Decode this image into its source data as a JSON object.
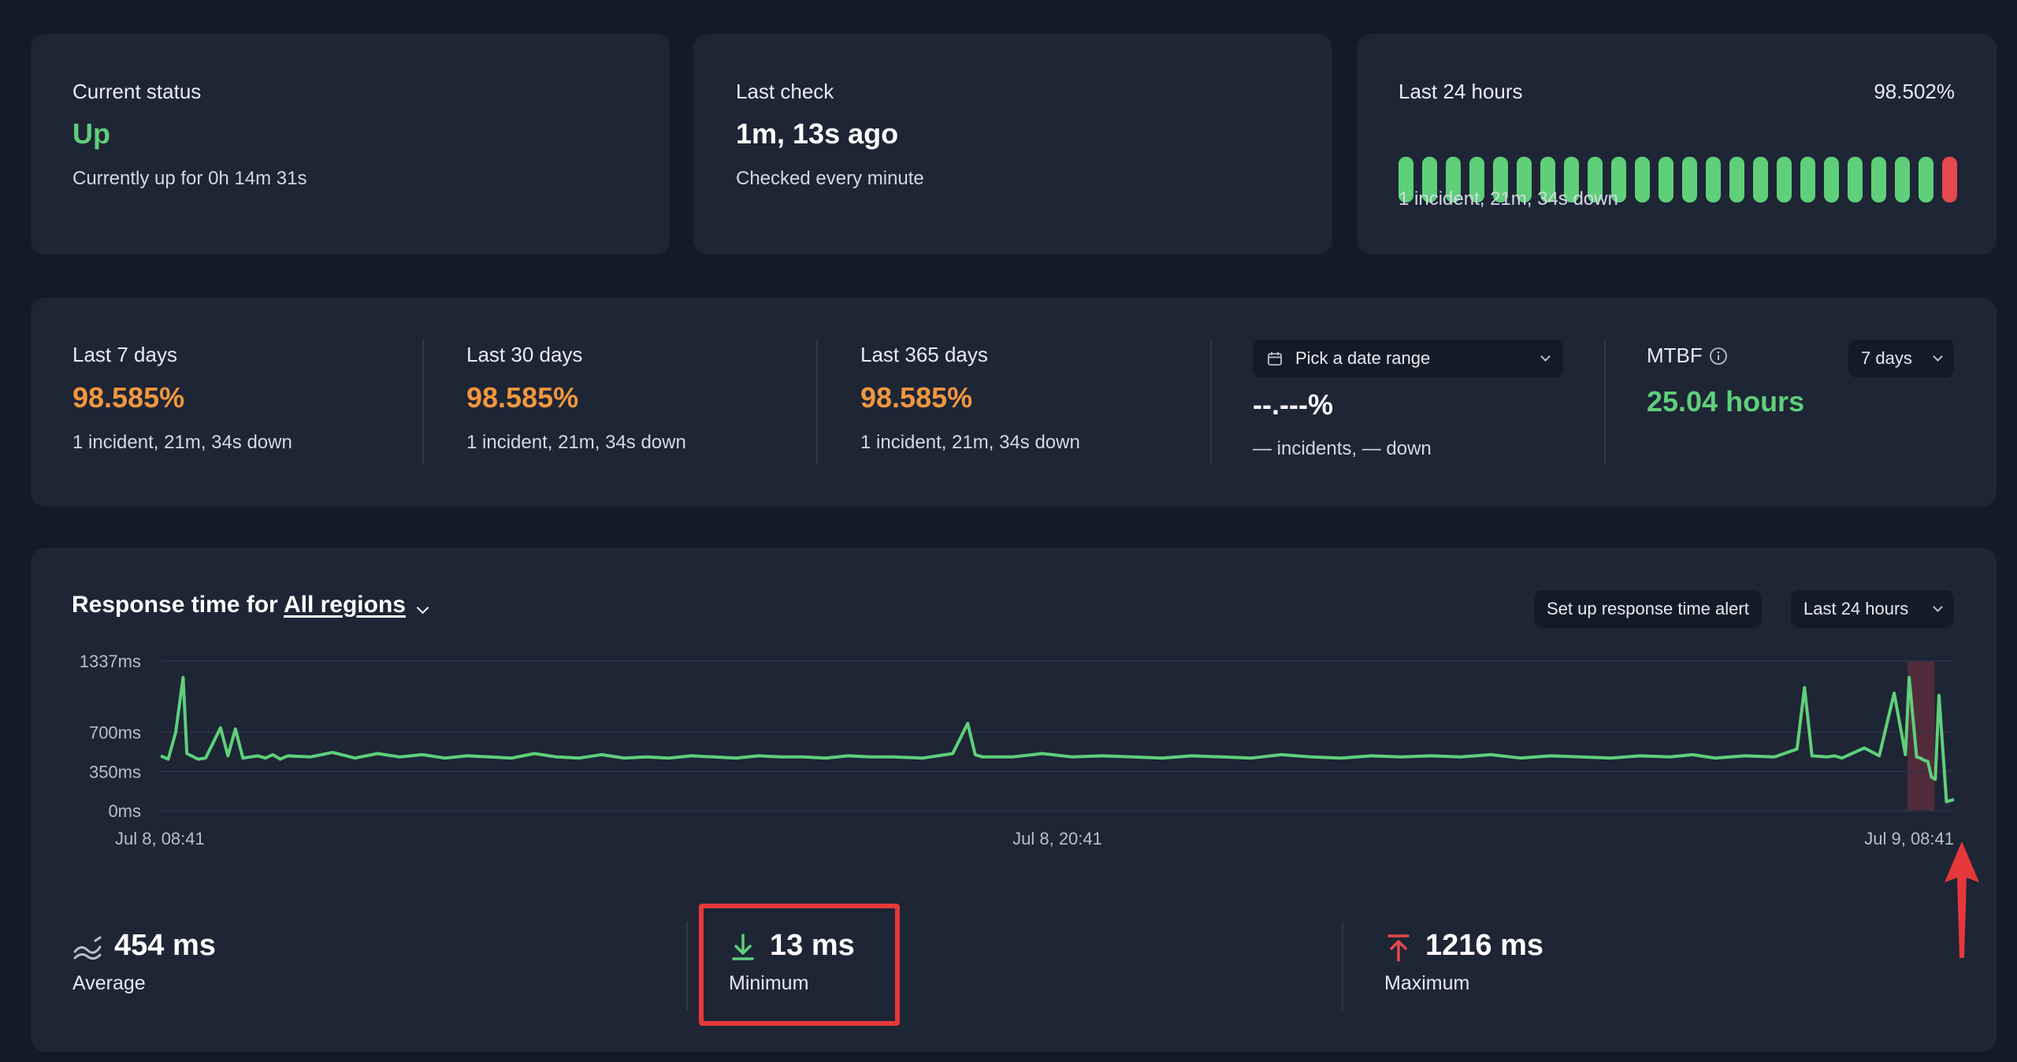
{
  "status_card": {
    "label": "Current status",
    "value": "Up",
    "detail": "Currently up for 0h 14m 31s"
  },
  "last_check_card": {
    "label": "Last check",
    "value": "1m, 13s ago",
    "detail": "Checked every minute"
  },
  "last24_card": {
    "label": "Last 24 hours",
    "percent": "98.502%",
    "detail": "1 incident, 21m, 34s down",
    "bars": [
      "up",
      "up",
      "up",
      "up",
      "up",
      "up",
      "up",
      "up",
      "up",
      "up",
      "up",
      "up",
      "up",
      "up",
      "up",
      "up",
      "up",
      "up",
      "up",
      "up",
      "up",
      "up",
      "up",
      "down"
    ],
    "colors": {
      "up": "#5fcf7a",
      "down": "#e5484d"
    }
  },
  "uptime": {
    "periods": [
      {
        "label": "Last 7 days",
        "value": "98.585%",
        "detail": "1 incident, 21m, 34s down"
      },
      {
        "label": "Last 30 days",
        "value": "98.585%",
        "detail": "1 incident, 21m, 34s down"
      },
      {
        "label": "Last 365 days",
        "value": "98.585%",
        "detail": "1 incident, 21m, 34s down"
      }
    ],
    "custom": {
      "picker_label": "Pick a date range",
      "value": "--.---%",
      "detail": "— incidents, — down"
    },
    "mtbf": {
      "label": "MTBF",
      "range": "7 days",
      "value": "25.04 hours"
    }
  },
  "response": {
    "title_prefix": "Response time for ",
    "region": "All regions",
    "alert_button": "Set up response time alert",
    "range": "Last 24 hours",
    "stats": {
      "average": {
        "value": "454 ms",
        "label": "Average"
      },
      "minimum": {
        "value": "13 ms",
        "label": "Minimum"
      },
      "maximum": {
        "value": "1216 ms",
        "label": "Maximum"
      }
    }
  },
  "chart_data": {
    "type": "line",
    "title": "",
    "xlabel": "",
    "ylabel": "",
    "y_ticks": [
      "1337ms",
      "700ms",
      "350ms",
      "0ms"
    ],
    "y_tick_values": [
      1337,
      700,
      350,
      0
    ],
    "ylim": [
      0,
      1337
    ],
    "x_ticks": [
      "Jul 8, 08:41",
      "Jul 8, 20:41",
      "Jul 9, 08:41"
    ],
    "x_tick_hours": [
      0,
      12,
      24
    ],
    "xlim_hours": [
      0,
      24
    ],
    "grid": true,
    "line_color": "#5fcf7a",
    "downtime_band_hours": [
      23.38,
      23.74
    ],
    "downtime_color": "#5a2d3b",
    "series": [
      {
        "x_hours": [
          0,
          0.1,
          0.2,
          0.3,
          0.35,
          0.5,
          0.6,
          0.8,
          0.9,
          1.0,
          1.1,
          1.2,
          1.3,
          1.4,
          1.5,
          1.6,
          1.7,
          2.0,
          2.3,
          2.6,
          2.9,
          3.2,
          3.5,
          3.8,
          4.1,
          4.4,
          4.7,
          5.0,
          5.3,
          5.6,
          5.9,
          6.2,
          6.5,
          6.8,
          7.1,
          7.4,
          7.7,
          8.0,
          8.3,
          8.6,
          8.9,
          9.2,
          9.5,
          9.8,
          10.2,
          10.6,
          10.8,
          10.9,
          11.0,
          11.4,
          11.8,
          12.2,
          12.6,
          13.0,
          13.4,
          13.8,
          14.2,
          14.6,
          15.0,
          15.4,
          15.8,
          16.2,
          16.6,
          17.0,
          17.4,
          17.8,
          18.2,
          18.6,
          19.0,
          19.4,
          19.8,
          20.2,
          20.5,
          20.8,
          21.2,
          21.6,
          21.9,
          22.0,
          22.1,
          22.3,
          22.4,
          22.5,
          22.6,
          22.8,
          23.0,
          23.2,
          23.35,
          23.4,
          23.5,
          23.55,
          23.6,
          23.65,
          23.7,
          23.75,
          23.8,
          23.9,
          24.0
        ],
        "values": [
          490,
          460,
          700,
          1190,
          510,
          460,
          470,
          740,
          490,
          730,
          470,
          480,
          490,
          470,
          500,
          460,
          490,
          480,
          520,
          470,
          510,
          480,
          500,
          470,
          490,
          480,
          470,
          510,
          480,
          470,
          500,
          470,
          480,
          470,
          490,
          480,
          470,
          490,
          480,
          480,
          470,
          490,
          480,
          480,
          470,
          510,
          780,
          500,
          480,
          480,
          510,
          480,
          490,
          480,
          470,
          490,
          480,
          470,
          500,
          480,
          470,
          490,
          480,
          490,
          480,
          500,
          470,
          490,
          480,
          470,
          490,
          480,
          500,
          470,
          490,
          480,
          550,
          1100,
          490,
          480,
          490,
          470,
          500,
          560,
          490,
          1050,
          500,
          1190,
          480,
          470,
          450,
          440,
          300,
          280,
          1030,
          80,
          100
        ]
      }
    ]
  }
}
